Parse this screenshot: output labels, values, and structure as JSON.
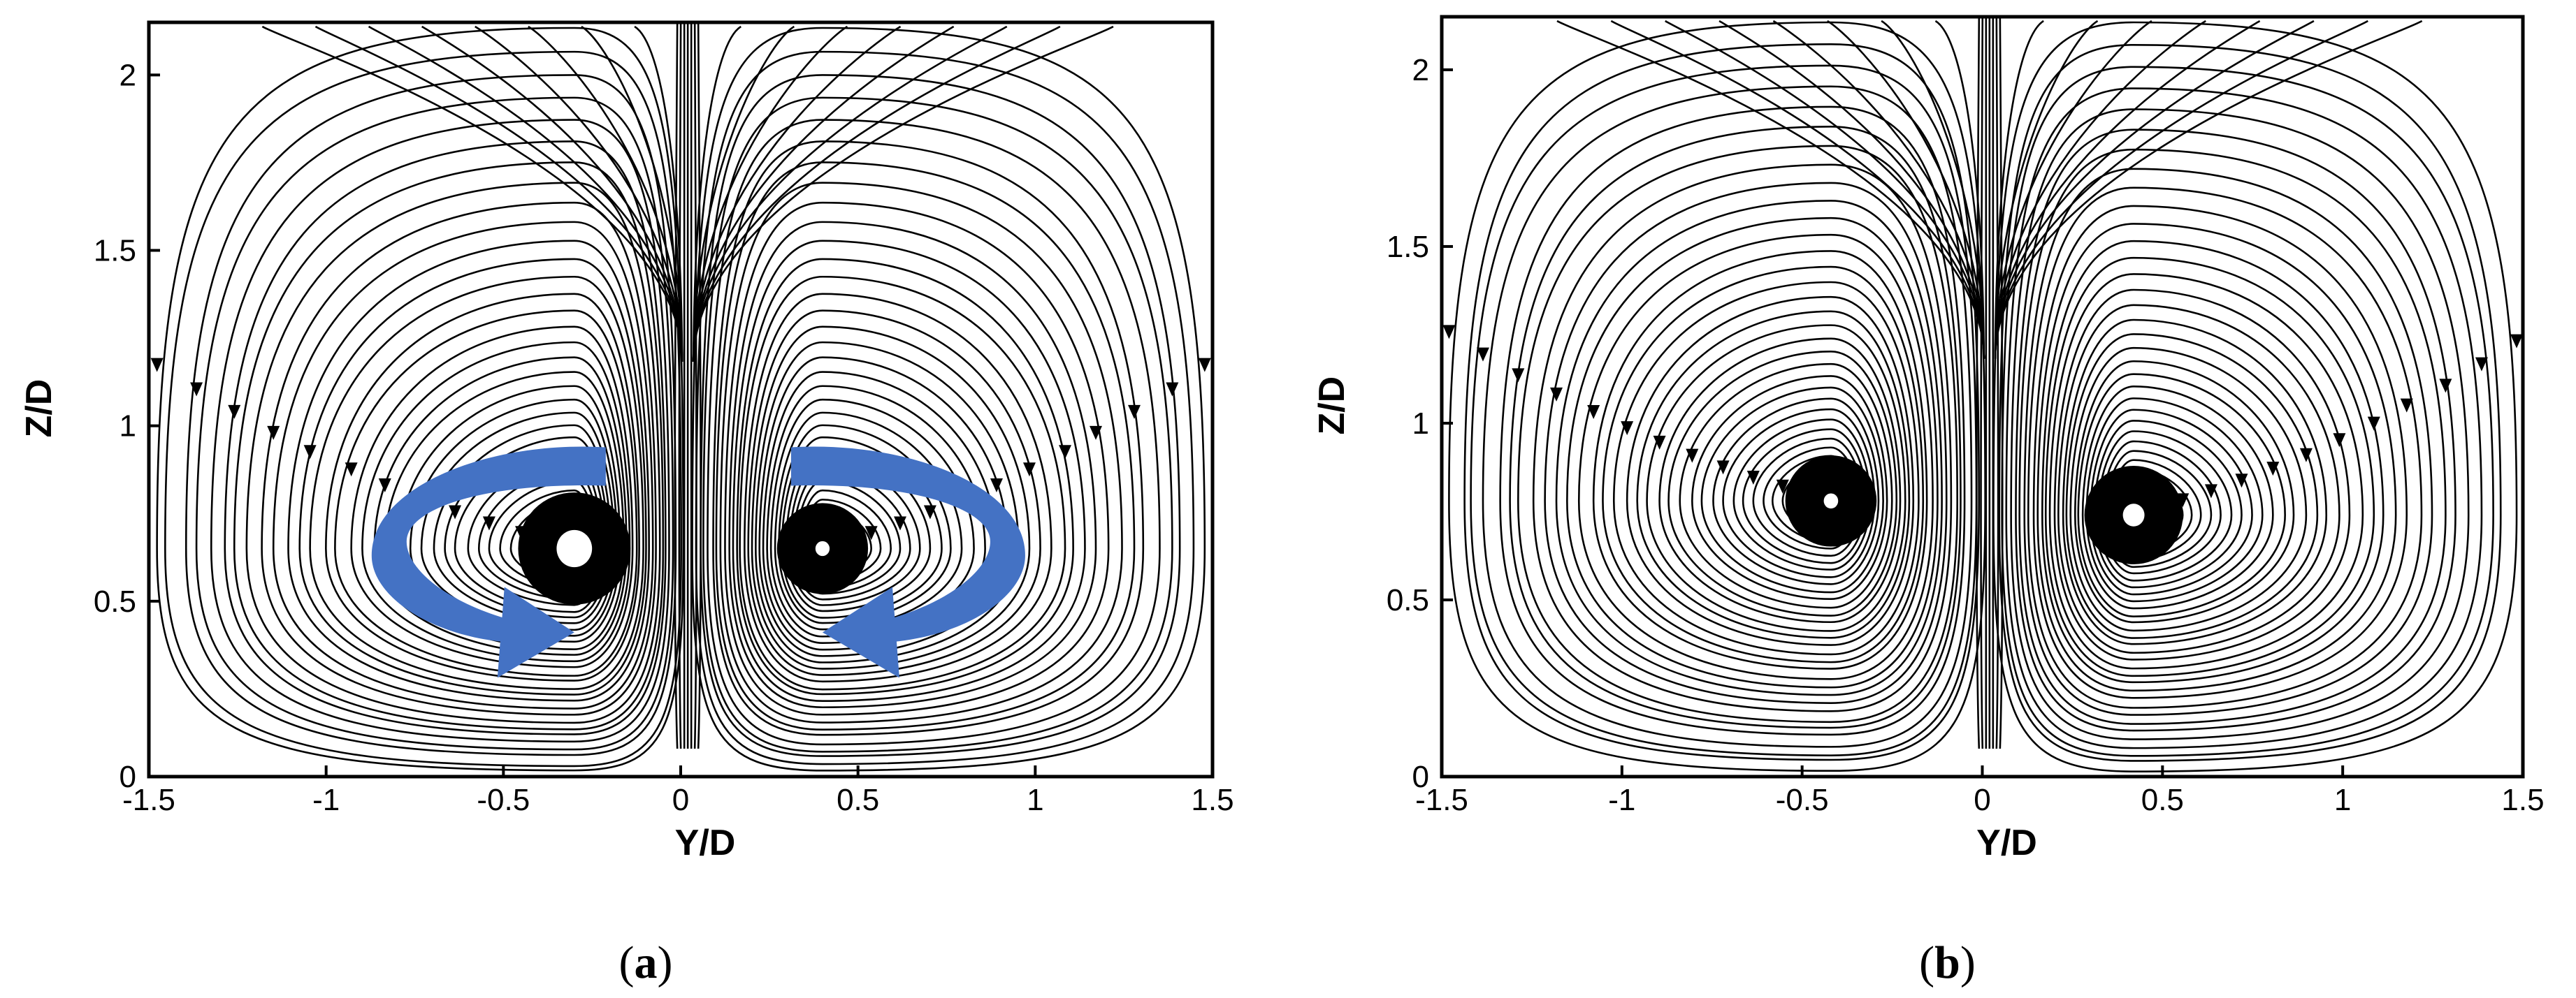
{
  "chart_data": [
    {
      "type": "streamline",
      "panel_label": "(a)",
      "panel_letter": "a",
      "xlabel": "Y/D",
      "ylabel": "Z/D",
      "xlim": [
        -1.5,
        1.5
      ],
      "ylim": [
        0,
        2.15
      ],
      "xticks": [
        -1.5,
        -1,
        -0.5,
        0,
        0.5,
        1,
        1.5
      ],
      "xtick_labels": [
        "-1.5",
        "-1",
        "-0.5",
        "0",
        "0.5",
        "1",
        "1.5"
      ],
      "yticks": [
        0,
        0.5,
        1,
        1.5,
        2
      ],
      "ytick_labels": [
        "0",
        "0.5",
        "1",
        "1.5",
        "2"
      ],
      "vortices": [
        {
          "center_y": -0.3,
          "center_z": 0.65,
          "sense": "counterclockwise",
          "core_radius": 0.05
        },
        {
          "center_y": 0.4,
          "center_z": 0.65,
          "sense": "clockwise",
          "core_radius": 0.02
        }
      ],
      "rotation_arrows": {
        "color": "#4472C4",
        "present": true
      },
      "grid": false
    },
    {
      "type": "streamline",
      "panel_label": "(b)",
      "panel_letter": "b",
      "xlabel": "Y/D",
      "ylabel": "Z/D",
      "xlim": [
        -1.5,
        1.5
      ],
      "ylim": [
        0,
        2.15
      ],
      "xticks": [
        -1.5,
        -1,
        -0.5,
        0,
        0.5,
        1,
        1.5
      ],
      "xtick_labels": [
        "-1.5",
        "-1",
        "-0.5",
        "0",
        "0.5",
        "1",
        "1.5"
      ],
      "yticks": [
        0,
        0.5,
        1,
        1.5,
        2
      ],
      "ytick_labels": [
        "0",
        "0.5",
        "1",
        "1.5",
        "2"
      ],
      "vortices": [
        {
          "center_y": -0.42,
          "center_z": 0.78,
          "sense": "counterclockwise",
          "core_radius": 0.02
        },
        {
          "center_y": 0.42,
          "center_z": 0.74,
          "sense": "clockwise",
          "core_radius": 0.03
        }
      ],
      "rotation_arrows": {
        "present": false
      },
      "grid": false
    }
  ]
}
